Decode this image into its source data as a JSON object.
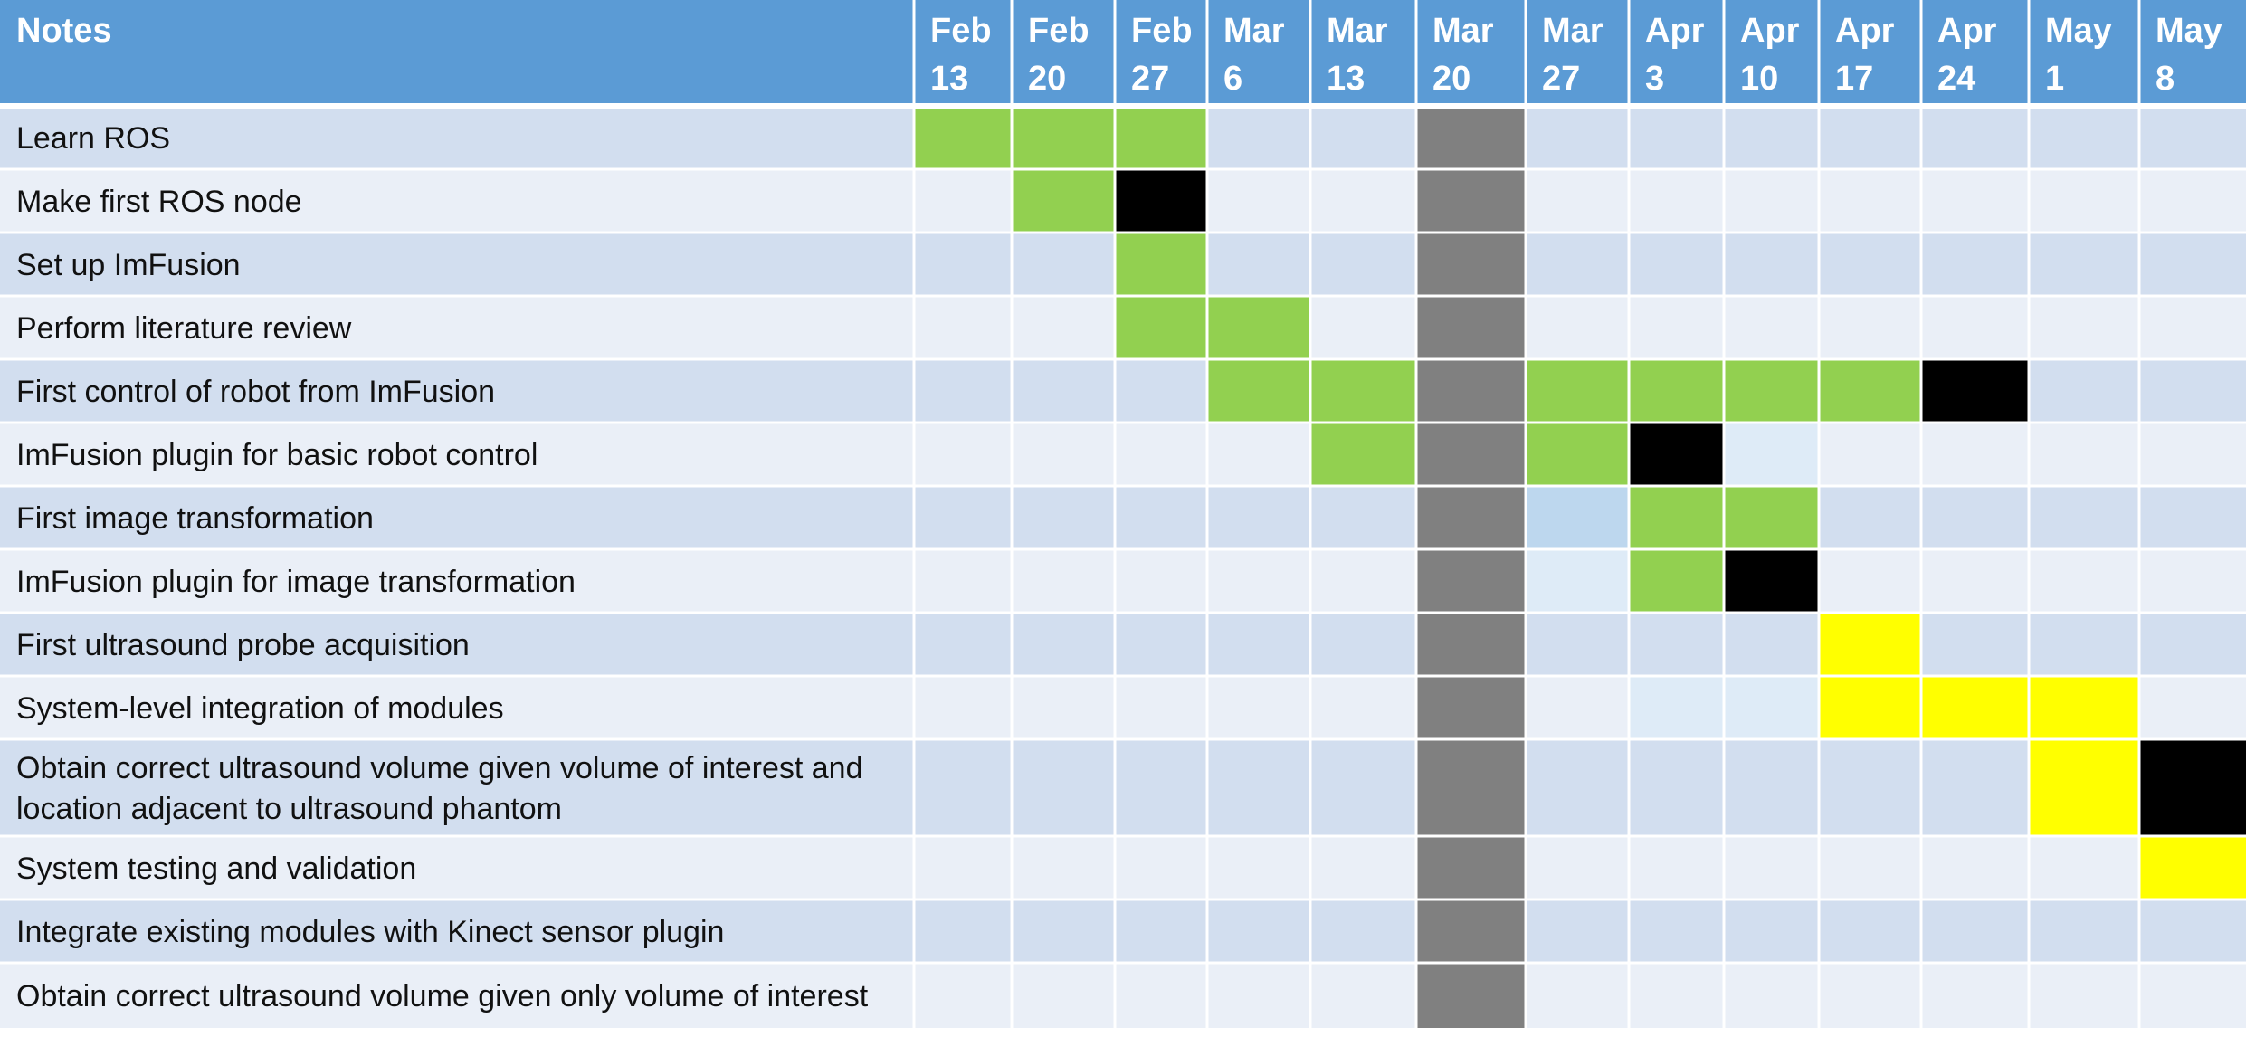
{
  "chart_data": {
    "type": "table",
    "header_label": "Notes",
    "columns": [
      [
        "Feb",
        "13"
      ],
      [
        "Feb",
        "20"
      ],
      [
        "Feb",
        "27"
      ],
      [
        "Mar",
        "6"
      ],
      [
        "Mar",
        "13"
      ],
      [
        "Mar",
        "20"
      ],
      [
        "Mar",
        "27"
      ],
      [
        "Apr",
        "3"
      ],
      [
        "Apr",
        "10"
      ],
      [
        "Apr",
        "17"
      ],
      [
        "Apr",
        "24"
      ],
      [
        "May",
        "1"
      ],
      [
        "May",
        "8"
      ]
    ],
    "tasks": [
      {
        "label": [
          "Learn ROS"
        ],
        "cells": {
          "0": "green",
          "1": "green",
          "2": "green"
        }
      },
      {
        "label": [
          "Make first ROS node"
        ],
        "cells": {
          "1": "green",
          "2": "black"
        }
      },
      {
        "label": [
          "Set up ImFusion"
        ],
        "cells": {
          "2": "green"
        }
      },
      {
        "label": [
          "Perform literature review"
        ],
        "cells": {
          "2": "green",
          "3": "green"
        }
      },
      {
        "label": [
          "First control of robot from ImFusion"
        ],
        "cells": {
          "3": "green",
          "4": "green",
          "6": "green",
          "7": "green",
          "8": "green",
          "9": "green",
          "10": "black"
        }
      },
      {
        "label": [
          "ImFusion plugin for basic robot control"
        ],
        "cells": {
          "4": "green",
          "6": "green",
          "7": "black",
          "8": "pale"
        }
      },
      {
        "label": [
          "First image transformation"
        ],
        "cells": {
          "6": "light",
          "7": "green",
          "8": "green"
        }
      },
      {
        "label": [
          "ImFusion plugin for image transformation"
        ],
        "cells": {
          "6": "pale",
          "7": "green",
          "8": "black"
        }
      },
      {
        "label": [
          "First ultrasound probe acquisition"
        ],
        "cells": {
          "9": "yellow"
        }
      },
      {
        "label": [
          "System-level integration of modules"
        ],
        "cells": {
          "7": "pale",
          "8": "pale",
          "9": "yellow",
          "10": "yellow",
          "11": "yellow"
        }
      },
      {
        "label": [
          "Obtain correct ultrasound volume given volume of interest and",
          "location adjacent to ultrasound phantom"
        ],
        "cells": {
          "11": "yellow",
          "12": "black"
        }
      },
      {
        "label": [
          "System testing and validation"
        ],
        "cells": {
          "12": "yellow"
        }
      },
      {
        "label": [
          "Integrate existing modules with Kinect sensor plugin"
        ],
        "cells": {}
      },
      {
        "label": [
          "Obtain correct ultrasound volume given only volume of interest"
        ],
        "cells": {}
      }
    ],
    "blocked_column": 5,
    "colors": {
      "header": "#5b9bd5",
      "row_odd": "#d2deef",
      "row_even": "#eaeff7",
      "green": "#92d050",
      "black": "#000000",
      "yellow": "#ffff00",
      "gray": "#808080",
      "light": "#bdd7ee",
      "pale": "#deebf7",
      "grid": "#ffffff"
    }
  }
}
